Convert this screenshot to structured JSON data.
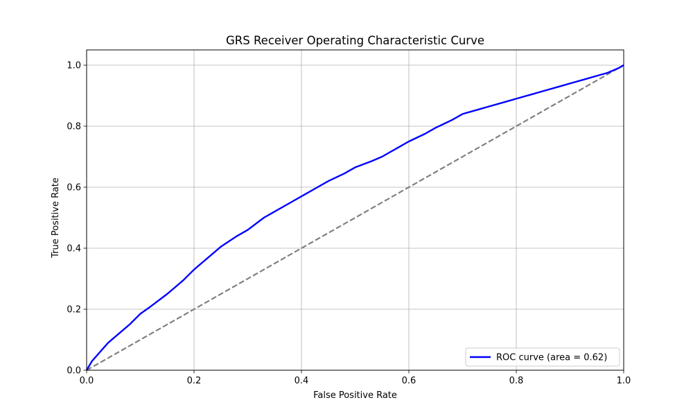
{
  "chart_data": {
    "type": "line",
    "title": "GRS Receiver Operating Characteristic Curve",
    "xlabel": "False Positive Rate",
    "ylabel": "True Positive Rate",
    "xlim": [
      0.0,
      1.0
    ],
    "ylim": [
      0.0,
      1.05
    ],
    "xticks": [
      0.0,
      0.2,
      0.4,
      0.6,
      0.8,
      1.0
    ],
    "yticks": [
      0.0,
      0.2,
      0.4,
      0.6,
      0.8,
      1.0
    ],
    "xtick_labels": [
      "0.0",
      "0.2",
      "0.4",
      "0.6",
      "0.8",
      "1.0"
    ],
    "ytick_labels": [
      "0.0",
      "0.2",
      "0.4",
      "0.6",
      "0.8",
      "1.0"
    ],
    "grid": true,
    "legend_position": "lower-right",
    "series": [
      {
        "name": "ROC curve (area = 0.62)",
        "color": "#0000ff",
        "style": "solid",
        "x": [
          0.0,
          0.005,
          0.01,
          0.02,
          0.03,
          0.04,
          0.05,
          0.06,
          0.08,
          0.1,
          0.12,
          0.15,
          0.18,
          0.2,
          0.25,
          0.28,
          0.3,
          0.33,
          0.35,
          0.38,
          0.4,
          0.43,
          0.45,
          0.48,
          0.5,
          0.53,
          0.55,
          0.58,
          0.6,
          0.63,
          0.65,
          0.68,
          0.7,
          0.73,
          0.75,
          0.78,
          0.8,
          0.83,
          0.85,
          0.88,
          0.9,
          0.93,
          0.95,
          0.97,
          0.99,
          1.0
        ],
        "y": [
          0.0,
          0.015,
          0.03,
          0.05,
          0.07,
          0.09,
          0.105,
          0.12,
          0.15,
          0.185,
          0.21,
          0.25,
          0.295,
          0.33,
          0.405,
          0.44,
          0.46,
          0.5,
          0.52,
          0.55,
          0.57,
          0.6,
          0.62,
          0.645,
          0.665,
          0.685,
          0.7,
          0.73,
          0.75,
          0.775,
          0.795,
          0.82,
          0.84,
          0.855,
          0.865,
          0.88,
          0.89,
          0.905,
          0.915,
          0.93,
          0.94,
          0.955,
          0.965,
          0.975,
          0.99,
          1.0
        ]
      },
      {
        "color": "#808080",
        "style": "dashed",
        "x": [
          0.0,
          1.0
        ],
        "y": [
          0.0,
          1.0
        ]
      }
    ]
  }
}
